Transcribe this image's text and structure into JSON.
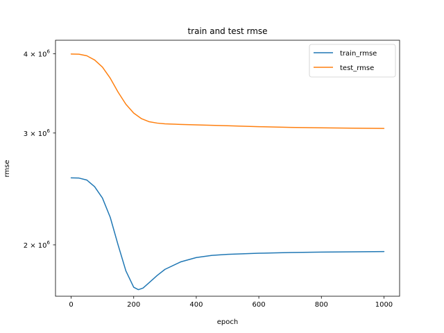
{
  "chart_data": {
    "type": "line",
    "title": "train and test rmse",
    "xlabel": "epoch",
    "ylabel": "rmse",
    "xlim": [
      -50,
      1050
    ],
    "ylim": [
      1660000,
      4200000
    ],
    "yscale": "log",
    "grid": false,
    "legend_position": "top-right",
    "x_ticks": [
      0,
      200,
      400,
      600,
      800,
      1000
    ],
    "x_tick_labels": [
      "0",
      "200",
      "400",
      "600",
      "800",
      "1000"
    ],
    "y_ticks": [
      {
        "value": 2000000,
        "base": "2 × 10",
        "exp": "6"
      },
      {
        "value": 3000000,
        "base": "3 × 10",
        "exp": "6"
      },
      {
        "value": 4000000,
        "base": "4 × 10",
        "exp": "6"
      }
    ],
    "series": [
      {
        "name": "train_rmse",
        "color": "#1f77b4",
        "points": [
          [
            0,
            2550000
          ],
          [
            25,
            2548000
          ],
          [
            50,
            2530000
          ],
          [
            75,
            2470000
          ],
          [
            100,
            2370000
          ],
          [
            125,
            2210000
          ],
          [
            150,
            2000000
          ],
          [
            175,
            1820000
          ],
          [
            200,
            1715000
          ],
          [
            215,
            1700000
          ],
          [
            230,
            1710000
          ],
          [
            250,
            1745000
          ],
          [
            275,
            1790000
          ],
          [
            300,
            1830000
          ],
          [
            350,
            1880000
          ],
          [
            400,
            1910000
          ],
          [
            450,
            1925000
          ],
          [
            500,
            1932000
          ],
          [
            600,
            1940000
          ],
          [
            700,
            1945000
          ],
          [
            800,
            1948000
          ],
          [
            900,
            1950000
          ],
          [
            1000,
            1952000
          ]
        ]
      },
      {
        "name": "test_rmse",
        "color": "#ff7f0e",
        "points": [
          [
            0,
            3995000
          ],
          [
            25,
            3993000
          ],
          [
            50,
            3970000
          ],
          [
            75,
            3910000
          ],
          [
            100,
            3810000
          ],
          [
            125,
            3660000
          ],
          [
            150,
            3480000
          ],
          [
            175,
            3330000
          ],
          [
            200,
            3225000
          ],
          [
            225,
            3160000
          ],
          [
            250,
            3125000
          ],
          [
            275,
            3110000
          ],
          [
            300,
            3102000
          ],
          [
            350,
            3095000
          ],
          [
            400,
            3090000
          ],
          [
            500,
            3080000
          ],
          [
            600,
            3070000
          ],
          [
            700,
            3062000
          ],
          [
            800,
            3057000
          ],
          [
            900,
            3053000
          ],
          [
            1000,
            3050000
          ]
        ]
      }
    ]
  }
}
